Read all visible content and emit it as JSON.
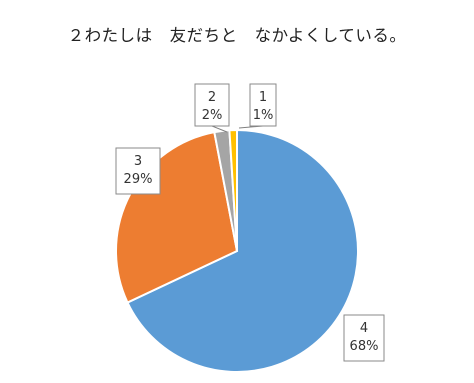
{
  "chart_data": {
    "type": "pie",
    "title": "２わたしは　友だちと　なかよくしている。",
    "categories": [
      "1",
      "2",
      "3",
      "4"
    ],
    "values": [
      1,
      2,
      29,
      68
    ],
    "percent_labels": [
      "1%",
      "2%",
      "29%",
      "68%"
    ],
    "colors": [
      "#FFC000",
      "#A5A5A5",
      "#ED7D31",
      "#5B9BD5"
    ],
    "start_angle_deg": 0,
    "direction": "clockwise",
    "legend": "none",
    "data_labels": "category and percent, callout boxes"
  }
}
